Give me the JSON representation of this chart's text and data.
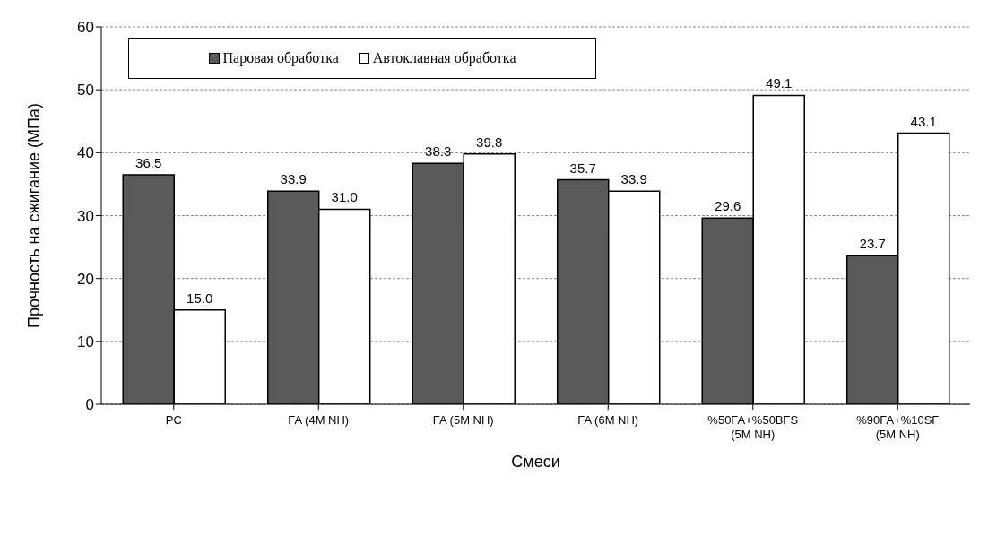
{
  "chart_data": {
    "type": "bar",
    "xlabel": "Смеси",
    "ylabel": "Прочность на сжигание (МПа)",
    "categories": [
      "PC",
      "FA (4M NH)",
      "FA (5M NH)",
      "FA (6M NH)",
      "%50FA+%50BFS\n(5M NH)",
      "%90FA+%10SF\n(5M NH)"
    ],
    "series": [
      {
        "name": "Паровая обработка",
        "color": "#595959",
        "values": [
          36.5,
          33.9,
          38.3,
          35.7,
          29.6,
          23.7
        ],
        "value_labels": [
          "36.5",
          "33.9",
          "38.3",
          "35.7",
          "29.6",
          "23.7"
        ]
      },
      {
        "name": "Автоклавная обработка",
        "color": "#ffffff",
        "values": [
          15.0,
          31.0,
          39.8,
          33.9,
          49.1,
          43.1
        ],
        "value_labels": [
          "15.0",
          "31.0",
          "39.8",
          "33.9",
          "49.1",
          "43.1"
        ]
      }
    ],
    "ylim": [
      0,
      60
    ],
    "yticks": [
      0,
      10,
      20,
      30,
      40,
      50,
      60
    ],
    "grid": "y",
    "legend": "top left"
  }
}
